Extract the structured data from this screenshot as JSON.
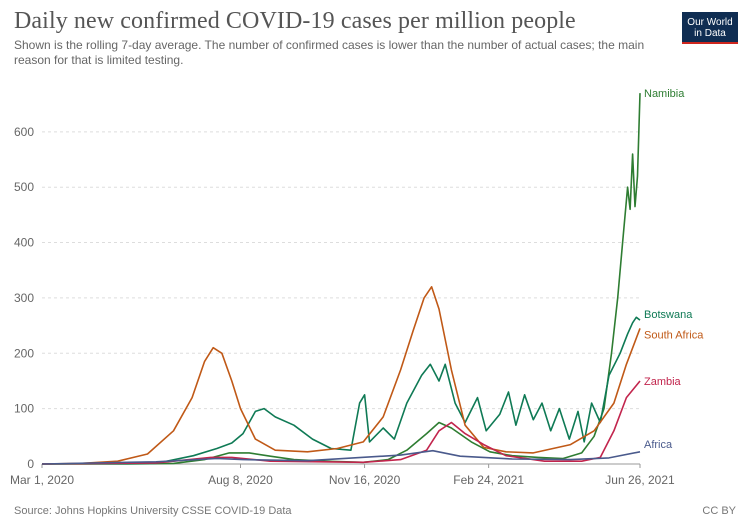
{
  "header": {
    "title": "Daily new confirmed COVID-19 cases per million people",
    "subtitle": "Shown is the rolling 7-day average. The number of confirmed cases is lower than the number of actual cases; the main reason for that is limited testing.",
    "logo_line1": "Our World",
    "logo_line2": "in Data"
  },
  "footer": {
    "source": "Source: Johns Hopkins University CSSE COVID-19 Data",
    "license": "CC BY"
  },
  "chart_data": {
    "type": "line",
    "title": "Daily new confirmed COVID-19 cases per million people",
    "xlabel": "",
    "ylabel": "",
    "x_range": [
      "2020-03-01",
      "2021-06-26"
    ],
    "x_ticks": [
      "Mar 1, 2020",
      "Aug 8, 2020",
      "Nov 16, 2020",
      "Feb 24, 2021",
      "Jun 26, 2021"
    ],
    "ylim": [
      0,
      690
    ],
    "y_ticks": [
      0,
      100,
      200,
      300,
      400,
      500,
      600
    ],
    "grid": true,
    "legend": "line-end labels",
    "series": [
      {
        "name": "Namibia",
        "color": "#2e7d32",
        "points": [
          [
            "2020-03-01",
            0
          ],
          [
            "2020-05-01",
            0
          ],
          [
            "2020-06-15",
            1
          ],
          [
            "2020-07-10",
            8
          ],
          [
            "2020-07-30",
            20
          ],
          [
            "2020-08-15",
            20
          ],
          [
            "2020-09-01",
            14
          ],
          [
            "2020-09-20",
            8
          ],
          [
            "2020-10-15",
            5
          ],
          [
            "2020-11-15",
            3
          ],
          [
            "2020-12-05",
            8
          ],
          [
            "2020-12-20",
            25
          ],
          [
            "2021-01-05",
            55
          ],
          [
            "2021-01-15",
            75
          ],
          [
            "2021-01-25",
            65
          ],
          [
            "2021-02-10",
            40
          ],
          [
            "2021-02-25",
            22
          ],
          [
            "2021-03-15",
            15
          ],
          [
            "2021-04-05",
            12
          ],
          [
            "2021-04-25",
            10
          ],
          [
            "2021-05-10",
            20
          ],
          [
            "2021-05-20",
            50
          ],
          [
            "2021-05-28",
            100
          ],
          [
            "2021-06-03",
            200
          ],
          [
            "2021-06-08",
            300
          ],
          [
            "2021-06-12",
            400
          ],
          [
            "2021-06-16",
            500
          ],
          [
            "2021-06-18",
            460
          ],
          [
            "2021-06-20",
            560
          ],
          [
            "2021-06-22",
            465
          ],
          [
            "2021-06-24",
            520
          ],
          [
            "2021-06-26",
            670
          ]
        ]
      },
      {
        "name": "Botswana",
        "color": "#0f7a55",
        "points": [
          [
            "2020-03-01",
            0
          ],
          [
            "2020-06-01",
            1
          ],
          [
            "2020-07-01",
            15
          ],
          [
            "2020-07-20",
            28
          ],
          [
            "2020-08-01",
            38
          ],
          [
            "2020-08-10",
            55
          ],
          [
            "2020-08-20",
            95
          ],
          [
            "2020-08-27",
            100
          ],
          [
            "2020-09-05",
            85
          ],
          [
            "2020-09-20",
            70
          ],
          [
            "2020-10-05",
            45
          ],
          [
            "2020-10-20",
            28
          ],
          [
            "2020-11-05",
            25
          ],
          [
            "2020-11-12",
            110
          ],
          [
            "2020-11-16",
            125
          ],
          [
            "2020-11-20",
            40
          ],
          [
            "2020-12-01",
            65
          ],
          [
            "2020-12-10",
            45
          ],
          [
            "2020-12-20",
            110
          ],
          [
            "2021-01-01",
            160
          ],
          [
            "2021-01-08",
            180
          ],
          [
            "2021-01-15",
            150
          ],
          [
            "2021-01-20",
            180
          ],
          [
            "2021-01-28",
            110
          ],
          [
            "2021-02-05",
            75
          ],
          [
            "2021-02-15",
            120
          ],
          [
            "2021-02-22",
            60
          ],
          [
            "2021-03-05",
            90
          ],
          [
            "2021-03-12",
            130
          ],
          [
            "2021-03-18",
            70
          ],
          [
            "2021-03-25",
            125
          ],
          [
            "2021-04-01",
            80
          ],
          [
            "2021-04-08",
            110
          ],
          [
            "2021-04-15",
            60
          ],
          [
            "2021-04-22",
            100
          ],
          [
            "2021-04-30",
            45
          ],
          [
            "2021-05-07",
            95
          ],
          [
            "2021-05-12",
            40
          ],
          [
            "2021-05-18",
            110
          ],
          [
            "2021-05-25",
            75
          ],
          [
            "2021-06-01",
            160
          ],
          [
            "2021-06-10",
            200
          ],
          [
            "2021-06-16",
            235
          ],
          [
            "2021-06-20",
            255
          ],
          [
            "2021-06-23",
            265
          ],
          [
            "2021-06-26",
            260
          ]
        ]
      },
      {
        "name": "South Africa",
        "color": "#c05917",
        "points": [
          [
            "2020-03-01",
            0
          ],
          [
            "2020-04-01",
            1
          ],
          [
            "2020-05-01",
            5
          ],
          [
            "2020-05-25",
            18
          ],
          [
            "2020-06-15",
            60
          ],
          [
            "2020-06-30",
            120
          ],
          [
            "2020-07-10",
            185
          ],
          [
            "2020-07-17",
            210
          ],
          [
            "2020-07-24",
            200
          ],
          [
            "2020-08-01",
            150
          ],
          [
            "2020-08-08",
            100
          ],
          [
            "2020-08-20",
            45
          ],
          [
            "2020-09-05",
            25
          ],
          [
            "2020-10-01",
            22
          ],
          [
            "2020-10-25",
            28
          ],
          [
            "2020-11-15",
            40
          ],
          [
            "2020-12-01",
            85
          ],
          [
            "2020-12-15",
            170
          ],
          [
            "2020-12-25",
            240
          ],
          [
            "2021-01-03",
            300
          ],
          [
            "2021-01-09",
            320
          ],
          [
            "2021-01-15",
            280
          ],
          [
            "2021-01-25",
            170
          ],
          [
            "2021-02-05",
            70
          ],
          [
            "2021-02-20",
            30
          ],
          [
            "2021-03-10",
            22
          ],
          [
            "2021-04-01",
            20
          ],
          [
            "2021-05-01",
            35
          ],
          [
            "2021-05-20",
            60
          ],
          [
            "2021-06-05",
            110
          ],
          [
            "2021-06-15",
            180
          ],
          [
            "2021-06-26",
            245
          ]
        ]
      },
      {
        "name": "Zambia",
        "color": "#c2254d",
        "points": [
          [
            "2020-03-01",
            0
          ],
          [
            "2020-06-01",
            2
          ],
          [
            "2020-07-15",
            12
          ],
          [
            "2020-08-01",
            12
          ],
          [
            "2020-09-01",
            5
          ],
          [
            "2020-11-15",
            3
          ],
          [
            "2020-12-15",
            8
          ],
          [
            "2021-01-05",
            25
          ],
          [
            "2021-01-15",
            60
          ],
          [
            "2021-01-25",
            75
          ],
          [
            "2021-02-05",
            55
          ],
          [
            "2021-02-20",
            35
          ],
          [
            "2021-03-10",
            15
          ],
          [
            "2021-04-10",
            5
          ],
          [
            "2021-05-10",
            5
          ],
          [
            "2021-05-25",
            12
          ],
          [
            "2021-06-05",
            60
          ],
          [
            "2021-06-15",
            120
          ],
          [
            "2021-06-26",
            150
          ]
        ]
      },
      {
        "name": "Africa",
        "color": "#4a5a8c",
        "points": [
          [
            "2020-03-01",
            0
          ],
          [
            "2020-06-01",
            4
          ],
          [
            "2020-07-20",
            10
          ],
          [
            "2020-08-10",
            8
          ],
          [
            "2020-10-01",
            6
          ],
          [
            "2020-12-15",
            16
          ],
          [
            "2021-01-10",
            24
          ],
          [
            "2021-02-01",
            14
          ],
          [
            "2021-03-15",
            9
          ],
          [
            "2021-05-01",
            8
          ],
          [
            "2021-06-01",
            11
          ],
          [
            "2021-06-26",
            22
          ]
        ]
      }
    ]
  }
}
